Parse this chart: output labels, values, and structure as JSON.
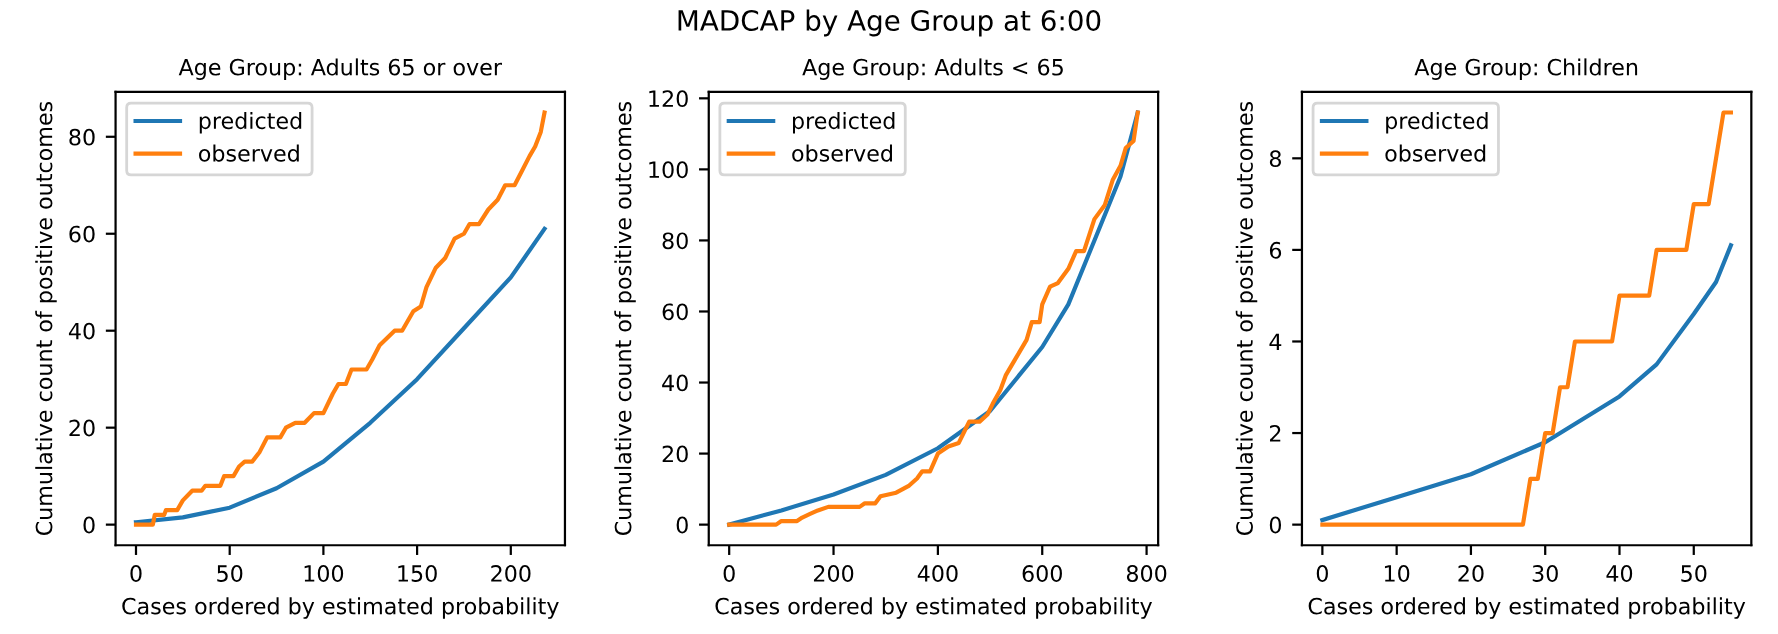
{
  "chart_data": [
    {
      "type": "line",
      "title": "Age Group: Adults 65 or over",
      "annotations": [
        "MADCAP by Age Group at 6:00"
      ],
      "xlabel": "Cases ordered by estimated probability",
      "ylabel": "Cumulative count of positive outcomes",
      "xlim": [
        -10.9,
        228.9
      ],
      "ylim": [
        -4.25,
        89.25
      ],
      "xticks": [
        0,
        50,
        100,
        150,
        200
      ],
      "yticks": [
        0,
        20,
        40,
        60,
        80
      ],
      "legend": "top left",
      "grid": false,
      "series": [
        {
          "name": "predicted",
          "color": "#1f77b4",
          "x": [
            0,
            25,
            50,
            75,
            100,
            125,
            150,
            175,
            200,
            218
          ],
          "values": [
            0.5,
            1.5,
            3.5,
            7.5,
            13,
            21,
            30,
            40.5,
            51,
            61
          ]
        },
        {
          "name": "observed",
          "color": "#ff7f0e",
          "x": [
            0,
            9,
            10,
            15,
            16,
            22,
            25,
            30,
            35,
            37,
            45,
            47,
            52,
            55,
            58,
            62,
            66,
            70,
            77,
            80,
            85,
            90,
            95,
            100,
            105,
            108,
            112,
            115,
            123,
            126,
            130,
            138,
            142,
            145,
            148,
            152,
            155,
            160,
            165,
            170,
            175,
            178,
            183,
            188,
            193,
            197,
            202,
            206,
            210,
            213,
            216,
            218
          ],
          "values": [
            0,
            0,
            2,
            2,
            3,
            3,
            5,
            7,
            7,
            8,
            8,
            10,
            10,
            12,
            13,
            13,
            15,
            18,
            18,
            20,
            21,
            21,
            23,
            23,
            27,
            29,
            29,
            32,
            32,
            34,
            37,
            40,
            40,
            42,
            44,
            45,
            49,
            53,
            55,
            59,
            60,
            62,
            62,
            65,
            67,
            70,
            70,
            73,
            76,
            78,
            81,
            85
          ]
        }
      ]
    },
    {
      "type": "line",
      "title": "Age Group: Adults < 65",
      "xlabel": "Cases ordered by estimated probability",
      "ylabel": "Cumulative count of positive outcomes",
      "xlim": [
        -39.15,
        822.15
      ],
      "ylim": [
        -5.8,
        121.8
      ],
      "xticks": [
        0,
        200,
        400,
        600,
        800
      ],
      "yticks": [
        0,
        20,
        40,
        60,
        80,
        100,
        120
      ],
      "legend": "top left",
      "grid": false,
      "series": [
        {
          "name": "predicted",
          "color": "#1f77b4",
          "x": [
            0,
            100,
            200,
            300,
            400,
            500,
            600,
            650,
            700,
            750,
            783
          ],
          "values": [
            0,
            4,
            8.5,
            14,
            21.5,
            32,
            50,
            62,
            80,
            98,
            116
          ]
        },
        {
          "name": "observed",
          "color": "#ff7f0e",
          "x": [
            0,
            90,
            100,
            130,
            140,
            155,
            170,
            190,
            250,
            260,
            280,
            290,
            320,
            345,
            360,
            370,
            385,
            400,
            410,
            420,
            440,
            450,
            460,
            480,
            495,
            505,
            520,
            530,
            550,
            570,
            580,
            595,
            600,
            615,
            630,
            650,
            665,
            680,
            700,
            720,
            735,
            750,
            760,
            775,
            783
          ],
          "values": [
            0,
            0,
            1,
            1,
            2,
            3,
            4,
            5,
            5,
            6,
            6,
            8,
            9,
            11,
            13,
            15,
            15,
            20,
            21,
            22,
            23,
            26,
            29,
            29,
            31,
            34,
            38,
            42,
            47,
            52,
            57,
            57,
            62,
            67,
            68,
            72,
            77,
            77,
            86,
            90,
            97,
            101,
            106,
            108,
            116
          ]
        }
      ]
    },
    {
      "type": "line",
      "title": "Age Group: Children",
      "xlabel": "Cases ordered by estimated probability",
      "ylabel": "Cumulative count of positive outcomes",
      "xlim": [
        -2.75,
        57.75
      ],
      "ylim": [
        -0.45,
        9.45
      ],
      "xticks": [
        0,
        10,
        20,
        30,
        40,
        50
      ],
      "yticks": [
        0,
        2,
        4,
        6,
        8
      ],
      "legend": "top left",
      "grid": false,
      "series": [
        {
          "name": "predicted",
          "color": "#1f77b4",
          "x": [
            0,
            10,
            20,
            30,
            40,
            45,
            50,
            53,
            55
          ],
          "values": [
            0.1,
            0.6,
            1.1,
            1.8,
            2.8,
            3.5,
            4.6,
            5.3,
            6.1
          ]
        },
        {
          "name": "observed",
          "color": "#ff7f0e",
          "x": [
            0,
            27,
            28,
            29,
            30,
            31,
            32,
            33,
            34,
            39,
            40,
            44,
            45,
            49,
            50,
            52,
            54,
            55
          ],
          "values": [
            0,
            0,
            1,
            1,
            2,
            2,
            3,
            3,
            4,
            4,
            5,
            5,
            6,
            6,
            7,
            7,
            9,
            9
          ]
        }
      ]
    }
  ]
}
